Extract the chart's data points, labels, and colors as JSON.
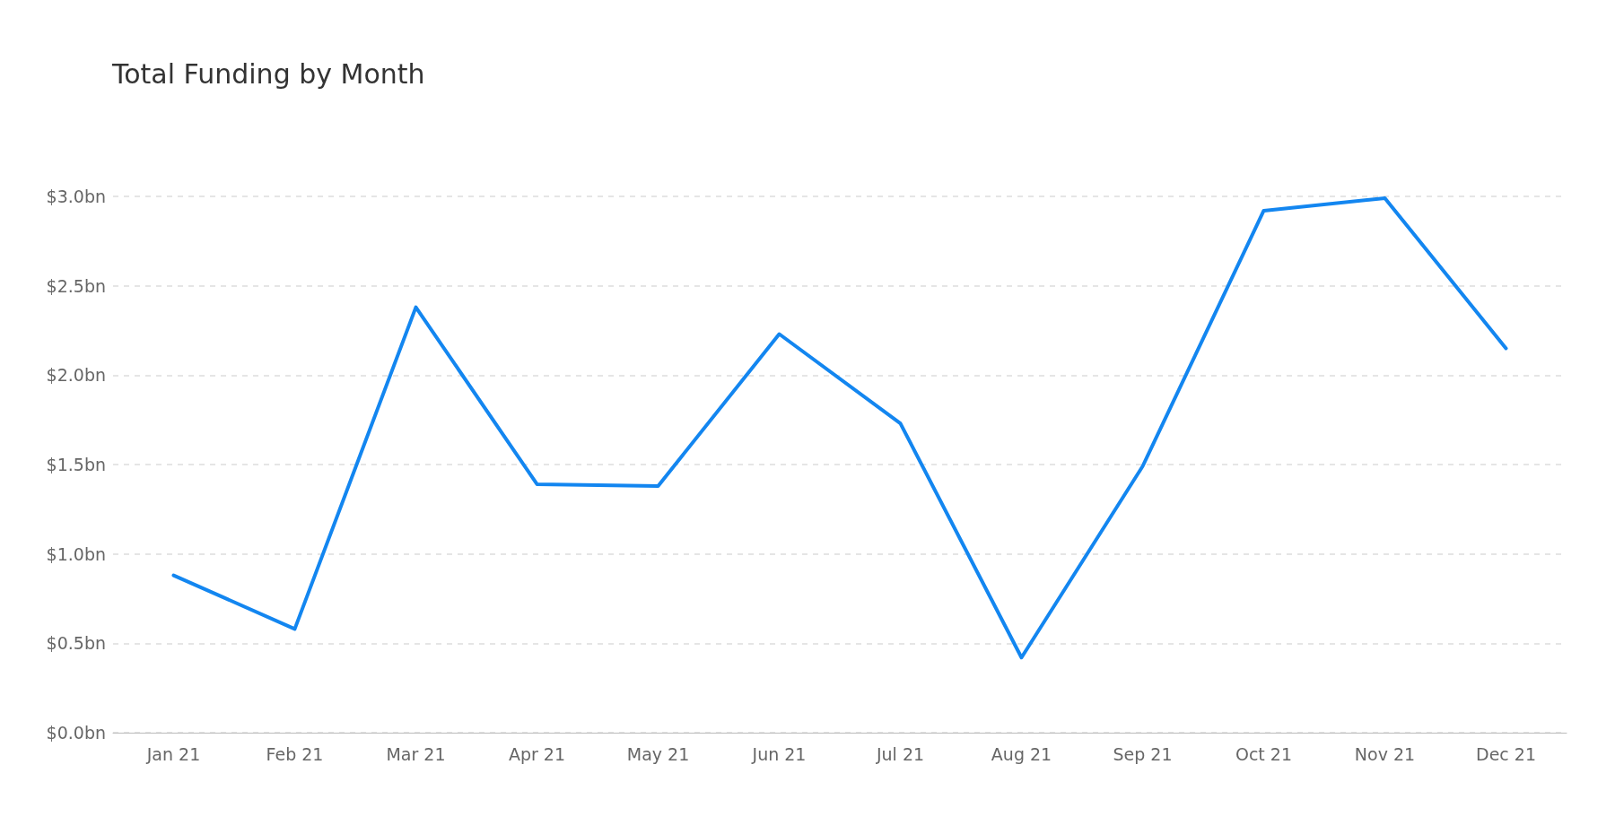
{
  "chart_data": {
    "type": "line",
    "title": "Total Funding by Month",
    "categories": [
      "Jan 21",
      "Feb 21",
      "Mar 21",
      "Apr 21",
      "May 21",
      "Jun 21",
      "Jul 21",
      "Aug 21",
      "Sep 21",
      "Oct 21",
      "Nov 21",
      "Dec 21"
    ],
    "series": [
      {
        "color": "#1386f0",
        "values": [
          0.88,
          0.58,
          2.38,
          1.39,
          1.38,
          2.23,
          1.73,
          0.42,
          1.49,
          2.92,
          2.99,
          2.15
        ]
      }
    ],
    "ylim": [
      0,
      3
    ],
    "yticks": [
      {
        "value": 0,
        "label": "$0.0bn"
      },
      {
        "value": 0.5,
        "label": "$0.5bn"
      },
      {
        "value": 1,
        "label": "$1.0bn"
      },
      {
        "value": 1.5,
        "label": "$1.5bn"
      },
      {
        "value": 2,
        "label": "$2.0bn"
      },
      {
        "value": 2.5,
        "label": "$2.5bn"
      },
      {
        "value": 3,
        "label": "$3.0bn"
      }
    ],
    "grid": "y",
    "marker": "none",
    "line_style": "solid"
  }
}
